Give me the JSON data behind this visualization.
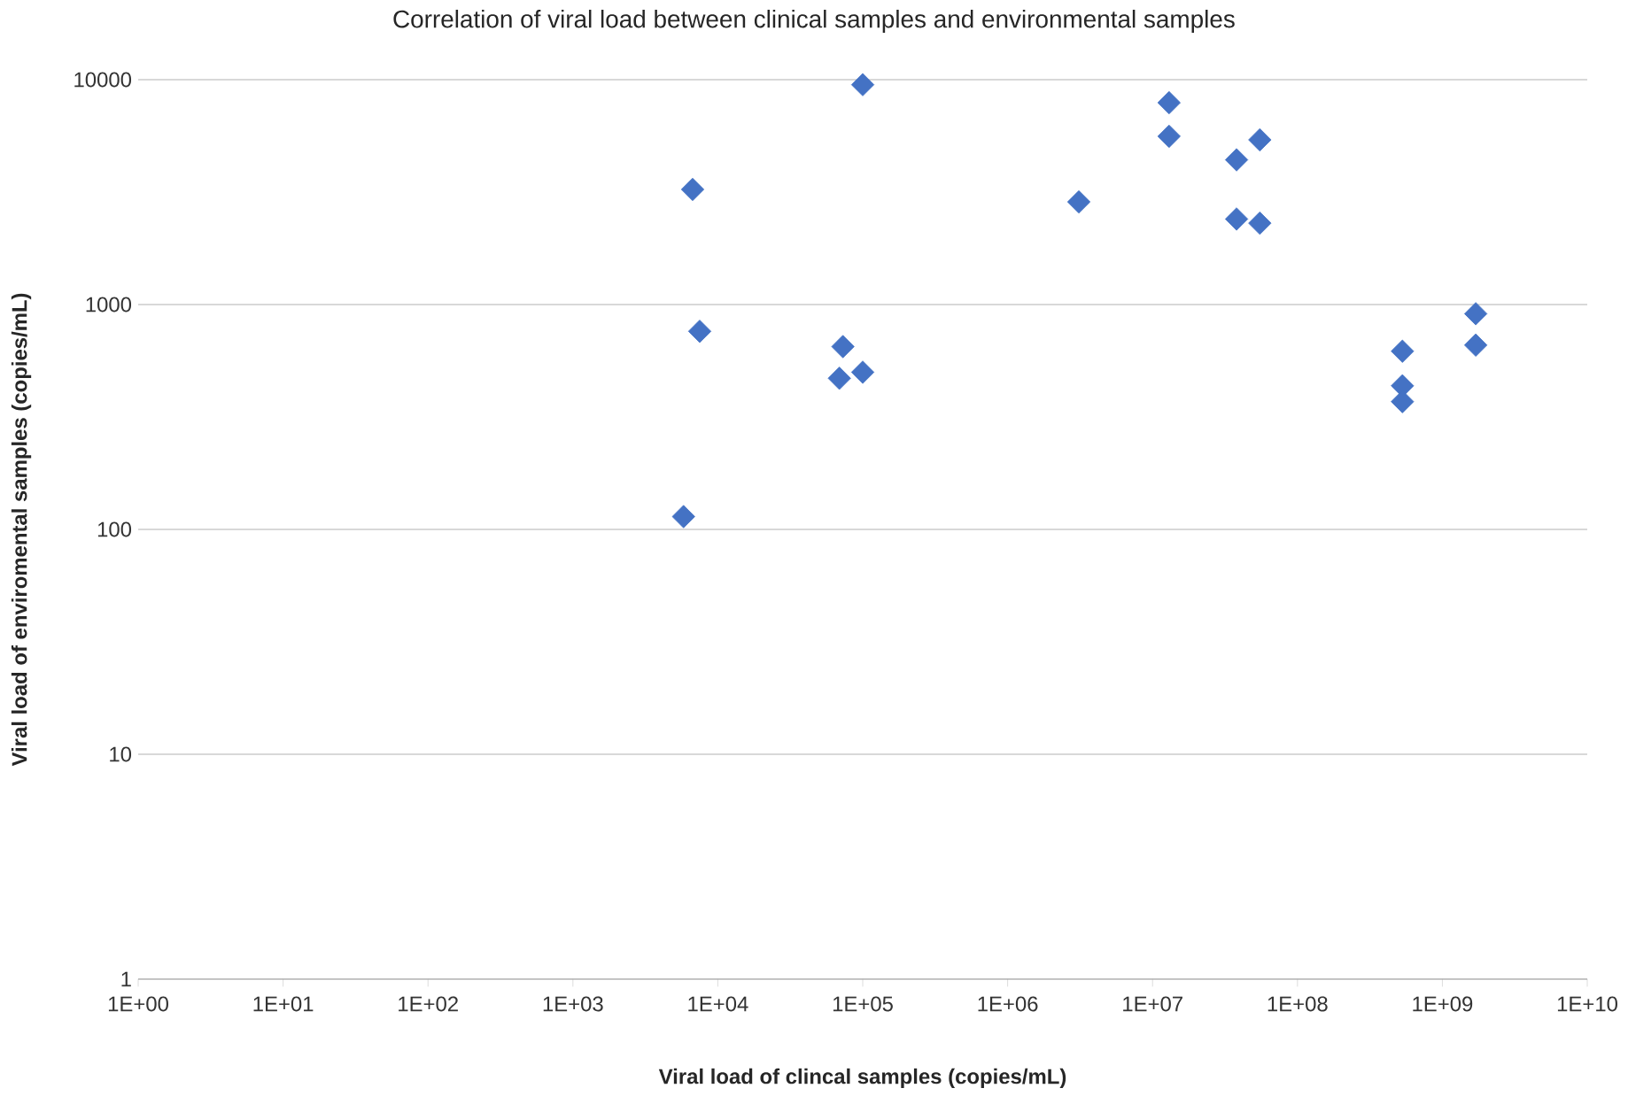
{
  "chart_data": {
    "type": "scatter",
    "title": "Correlation of viral load between clinical samples and environmental samples",
    "xlabel": "Viral load of clincal samples (copies/mL)",
    "ylabel": "Viral load of enviromental samples (copies/mL)",
    "log": "xy",
    "grid": "y",
    "marker": "diamond",
    "xlim": [
      1,
      10000000000
    ],
    "ylim": [
      1,
      10000
    ],
    "xticks": [
      {
        "value": 1,
        "label": "1E+00"
      },
      {
        "value": 10,
        "label": "1E+01"
      },
      {
        "value": 100,
        "label": "1E+02"
      },
      {
        "value": 1000,
        "label": "1E+03"
      },
      {
        "value": 10000,
        "label": "1E+04"
      },
      {
        "value": 100000,
        "label": "1E+05"
      },
      {
        "value": 1000000,
        "label": "1E+06"
      },
      {
        "value": 10000000,
        "label": "1E+07"
      },
      {
        "value": 100000000,
        "label": "1E+08"
      },
      {
        "value": 1000000000,
        "label": "1E+09"
      },
      {
        "value": 10000000000,
        "label": "1E+10"
      }
    ],
    "yticks": [
      1,
      10,
      100,
      1000,
      10000
    ],
    "series": [
      {
        "color": "#4472c4",
        "x": [
          5800,
          6700,
          7500,
          100000,
          73000,
          69000,
          100000,
          3100000,
          13000000,
          13000000,
          38000000,
          55000000,
          38000000,
          55000000,
          530000000,
          530000000,
          530000000,
          1700000000,
          1700000000
        ],
        "values": [
          114,
          3250,
          760,
          9500,
          650,
          470,
          500,
          2860,
          7900,
          5600,
          4400,
          5400,
          2400,
          2300,
          620,
          435,
          370,
          910,
          660
        ]
      }
    ]
  }
}
